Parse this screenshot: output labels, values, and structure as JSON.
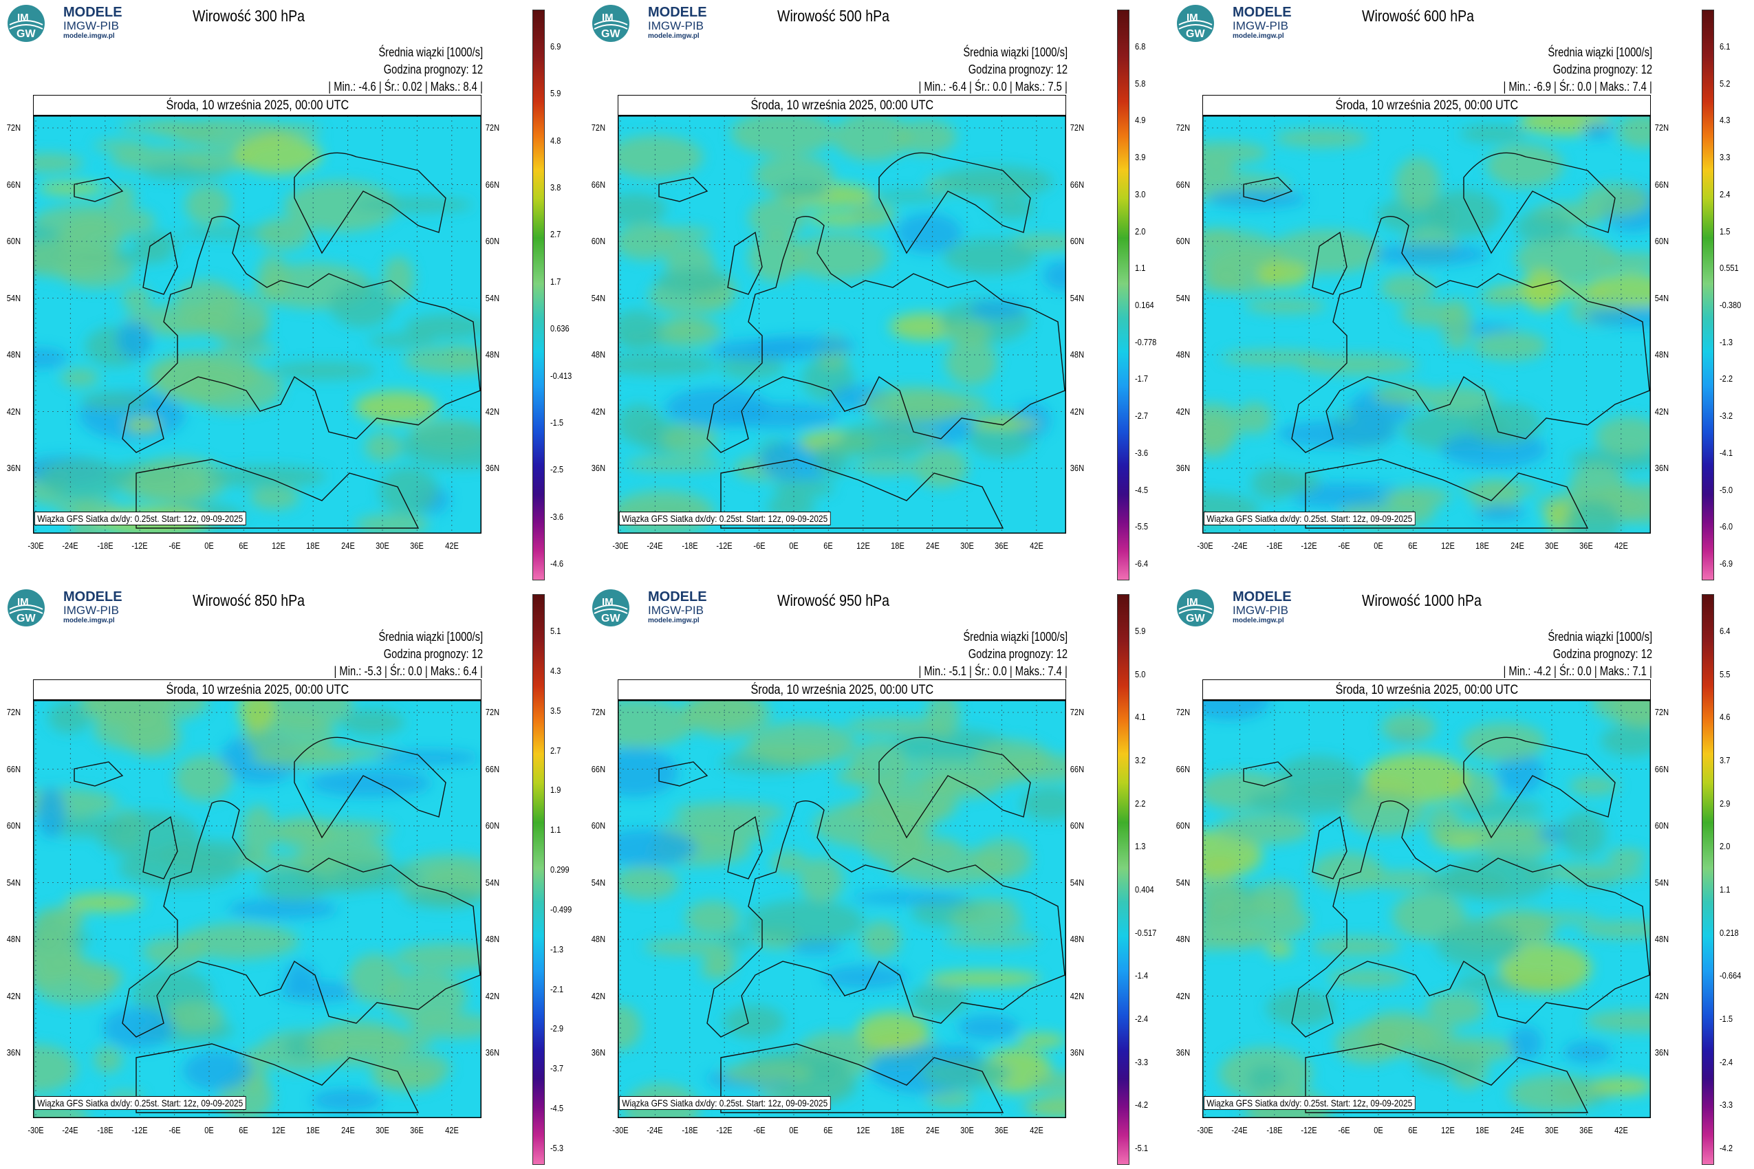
{
  "brand": {
    "name": "MODELE",
    "org": "IMGW-PIB",
    "url": "modele.imgw.pl",
    "logo_text_top": "IM",
    "logo_text_bottom": "GW"
  },
  "common": {
    "subtitle": "Średnia wiązki [1000/s]",
    "forecast_hour": "Godzina prognozy: 12",
    "date": "Środa, 10 września 2025, 00:00 UTC",
    "caption": "Wiązka GFS Siatka dx/dy: 0.25st. Start: 12z, 09-09-2025",
    "lat_labels": [
      "72N",
      "66N",
      "60N",
      "54N",
      "48N",
      "42N",
      "36N"
    ],
    "lon_labels": [
      "-30E",
      "-24E",
      "-18E",
      "-12E",
      "-6E",
      "0E",
      "6E",
      "12E",
      "18E",
      "24E",
      "30E",
      "36E",
      "42E"
    ]
  },
  "panels": [
    {
      "title": "Wirowość 300 hPa",
      "stats": "| Min.:   -4.6 | Śr.:   0.02 | Maks.:    8.4 |",
      "colorbar": [
        "6.9",
        "5.9",
        "4.8",
        "3.8",
        "2.7",
        "1.7",
        "0.636",
        "-0.413",
        "-1.5",
        "-2.5",
        "-3.6",
        "-4.6"
      ]
    },
    {
      "title": "Wirowość 500 hPa",
      "stats": "| Min.:   -6.4 | Śr.:   0.0 | Maks.:   7.5 |",
      "colorbar": [
        "6.8",
        "5.8",
        "4.9",
        "3.9",
        "3.0",
        "2.0",
        "1.1",
        "0.164",
        "-0.778",
        "-1.7",
        "-2.7",
        "-3.6",
        "-4.5",
        "-5.5",
        "-6.4"
      ]
    },
    {
      "title": "Wirowość 600 hPa",
      "stats": "| Min.:   -6.9 | Śr.:   0.0 | Maks.:   7.4 |",
      "colorbar": [
        "6.1",
        "5.2",
        "4.3",
        "3.3",
        "2.4",
        "1.5",
        "0.551",
        "-0.380",
        "-1.3",
        "-2.2",
        "-3.2",
        "-4.1",
        "-5.0",
        "-6.0",
        "-6.9"
      ]
    },
    {
      "title": "Wirowość 850 hPa",
      "stats": "| Min.:   -5.3 | Śr.:   0.0 | Maks.:   6.4 |",
      "colorbar": [
        "5.1",
        "4.3",
        "3.5",
        "2.7",
        "1.9",
        "1.1",
        "0.299",
        "-0.499",
        "-1.3",
        "-2.1",
        "-2.9",
        "-3.7",
        "-4.5",
        "-5.3"
      ]
    },
    {
      "title": "Wirowość 950 hPa",
      "stats": "| Min.:   -5.1 | Śr.:   0.0 | Maks.:   7.4 |",
      "colorbar": [
        "5.9",
        "5.0",
        "4.1",
        "3.2",
        "2.2",
        "1.3",
        "0.404",
        "-0.517",
        "-1.4",
        "-2.4",
        "-3.3",
        "-4.2",
        "-5.1"
      ]
    },
    {
      "title": "Wirowość 1000 hPa",
      "stats": "| Min.:   -4.2 | Śr.:   0.0 | Maks.:   7.1 |",
      "colorbar": [
        "6.4",
        "5.5",
        "4.6",
        "3.7",
        "2.9",
        "2.0",
        "1.1",
        "0.218",
        "-0.664",
        "-1.5",
        "-2.4",
        "-3.3",
        "-4.2"
      ]
    }
  ]
}
